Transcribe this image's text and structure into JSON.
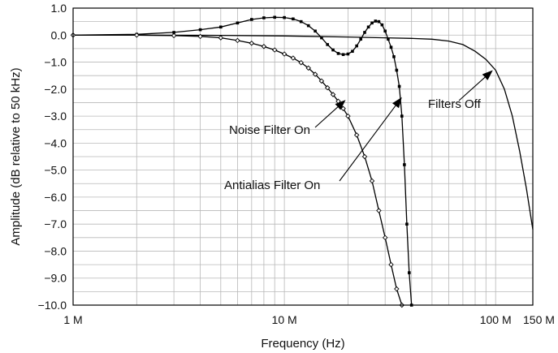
{
  "chart_data": {
    "type": "line",
    "xlabel": "Frequency (Hz)",
    "ylabel": "Amplitude (dB relative to 50 kHz)",
    "xscale": "log",
    "xlim": [
      1000000,
      150000000
    ],
    "ylim": [
      -10.0,
      1.0
    ],
    "grid": true,
    "x_tick_labels": [
      {
        "value": 1000000,
        "label": "1 M"
      },
      {
        "value": 10000000,
        "label": "10 M"
      },
      {
        "value": 100000000,
        "label": "100 M"
      },
      {
        "value": 150000000,
        "label": "150 M"
      }
    ],
    "y_tick_labels": [
      {
        "value": 1.0,
        "label": "1.0"
      },
      {
        "value": 0.0,
        "label": "0.0"
      },
      {
        "value": -1.0,
        "label": "−1.0"
      },
      {
        "value": -2.0,
        "label": "−2.0"
      },
      {
        "value": -3.0,
        "label": "−3.0"
      },
      {
        "value": -4.0,
        "label": "−4.0"
      },
      {
        "value": -5.0,
        "label": "−5.0"
      },
      {
        "value": -6.0,
        "label": "−6.0"
      },
      {
        "value": -7.0,
        "label": "−7.0"
      },
      {
        "value": -8.0,
        "label": "−8.0"
      },
      {
        "value": -9.0,
        "label": "−9.0"
      },
      {
        "value": -10.0,
        "label": "−10.0"
      }
    ],
    "series": [
      {
        "name": "Filters Off",
        "marker": "none",
        "points": [
          [
            1000000,
            0.0
          ],
          [
            2000000,
            0.0
          ],
          [
            5000000,
            -0.01
          ],
          [
            10000000,
            -0.03
          ],
          [
            20000000,
            -0.07
          ],
          [
            30000000,
            -0.1
          ],
          [
            40000000,
            -0.12
          ],
          [
            50000000,
            -0.15
          ],
          [
            60000000,
            -0.22
          ],
          [
            70000000,
            -0.35
          ],
          [
            80000000,
            -0.6
          ],
          [
            90000000,
            -0.9
          ],
          [
            100000000,
            -1.3
          ],
          [
            110000000,
            -2.0
          ],
          [
            120000000,
            -3.0
          ],
          [
            130000000,
            -4.3
          ],
          [
            140000000,
            -5.7
          ],
          [
            150000000,
            -7.2
          ]
        ]
      },
      {
        "name": "Antialias Filter On",
        "marker": "square",
        "points": [
          [
            1000000,
            0.0
          ],
          [
            2000000,
            0.03
          ],
          [
            3000000,
            0.1
          ],
          [
            4000000,
            0.2
          ],
          [
            5000000,
            0.3
          ],
          [
            6000000,
            0.45
          ],
          [
            7000000,
            0.58
          ],
          [
            8000000,
            0.64
          ],
          [
            9000000,
            0.66
          ],
          [
            10000000,
            0.65
          ],
          [
            11000000,
            0.6
          ],
          [
            12000000,
            0.5
          ],
          [
            13000000,
            0.35
          ],
          [
            14000000,
            0.15
          ],
          [
            15000000,
            -0.1
          ],
          [
            16000000,
            -0.35
          ],
          [
            17000000,
            -0.55
          ],
          [
            18000000,
            -0.68
          ],
          [
            19000000,
            -0.72
          ],
          [
            20000000,
            -0.7
          ],
          [
            21000000,
            -0.6
          ],
          [
            22000000,
            -0.4
          ],
          [
            23000000,
            -0.15
          ],
          [
            24000000,
            0.1
          ],
          [
            25000000,
            0.3
          ],
          [
            26000000,
            0.45
          ],
          [
            27000000,
            0.52
          ],
          [
            28000000,
            0.5
          ],
          [
            29000000,
            0.38
          ],
          [
            30000000,
            0.15
          ],
          [
            31000000,
            -0.15
          ],
          [
            32000000,
            -0.45
          ],
          [
            33000000,
            -0.8
          ],
          [
            34000000,
            -1.3
          ],
          [
            35000000,
            -1.9
          ],
          [
            36000000,
            -3.0
          ],
          [
            37000000,
            -4.8
          ],
          [
            38000000,
            -7.0
          ],
          [
            39000000,
            -8.8
          ],
          [
            40000000,
            -10.0
          ]
        ]
      },
      {
        "name": "Noise Filter On",
        "marker": "diamond",
        "points": [
          [
            1000000,
            0.0
          ],
          [
            2000000,
            0.0
          ],
          [
            3000000,
            -0.02
          ],
          [
            4000000,
            -0.05
          ],
          [
            5000000,
            -0.1
          ],
          [
            6000000,
            -0.2
          ],
          [
            7000000,
            -0.3
          ],
          [
            8000000,
            -0.42
          ],
          [
            9000000,
            -0.55
          ],
          [
            10000000,
            -0.7
          ],
          [
            11000000,
            -0.85
          ],
          [
            12000000,
            -1.02
          ],
          [
            13000000,
            -1.22
          ],
          [
            14000000,
            -1.45
          ],
          [
            15000000,
            -1.7
          ],
          [
            16000000,
            -1.95
          ],
          [
            17000000,
            -2.2
          ],
          [
            18000000,
            -2.45
          ],
          [
            19000000,
            -2.72
          ],
          [
            20000000,
            -3.0
          ],
          [
            22000000,
            -3.7
          ],
          [
            24000000,
            -4.5
          ],
          [
            26000000,
            -5.4
          ],
          [
            28000000,
            -6.5
          ],
          [
            30000000,
            -7.5
          ],
          [
            32000000,
            -8.5
          ],
          [
            34000000,
            -9.4
          ],
          [
            36000000,
            -10.0
          ]
        ]
      }
    ],
    "annotations": [
      {
        "text": "Noise Filter On",
        "points_to": [
          19500000,
          -2.4
        ]
      },
      {
        "text": "Antialias Filter On",
        "points_to": [
          36000000,
          -2.3
        ]
      },
      {
        "text": "Filters Off",
        "points_to": [
          97000000,
          -1.3
        ]
      }
    ]
  }
}
